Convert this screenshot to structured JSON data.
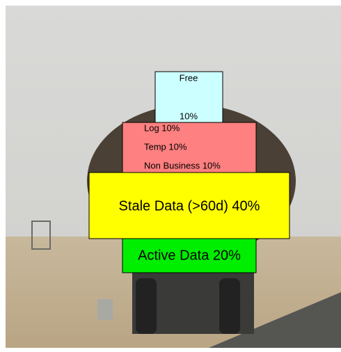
{
  "free": {
    "label": "Free",
    "percent": "10%"
  },
  "small_segments": [
    "Log 10%",
    "Temp 10%",
    "Non Business 10%"
  ],
  "stale": "Stale Data (>60d) 40%",
  "active": "Active Data 20%"
}
